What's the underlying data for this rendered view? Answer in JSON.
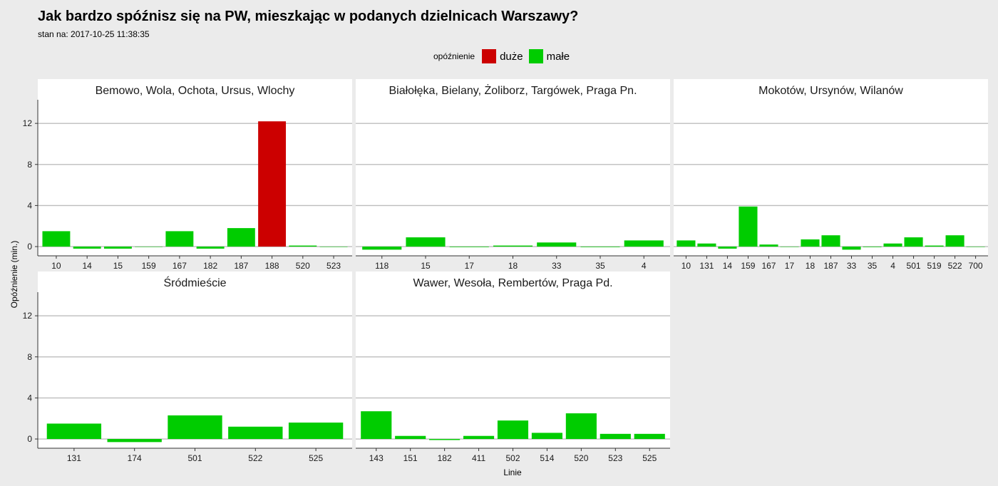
{
  "title": "Jak bardzo spóźnisz się na PW, mieszkając w podanych dzielnicach Warszawy?",
  "subtitle": "stan na: 2017-10-25 11:38:35",
  "legend": {
    "title": "opóźnienie",
    "items": [
      {
        "label": "duże",
        "color": "#cc0000"
      },
      {
        "label": "małe",
        "color": "#00cc00"
      }
    ]
  },
  "chart_data": {
    "type": "bar",
    "xlabel": "Linie",
    "ylabel": "Opóźnienie (min.)",
    "ylim": [
      -0.9,
      14.3
    ],
    "yticks": [
      0,
      4,
      8,
      12
    ],
    "grid": true,
    "legend_position": "top",
    "colors": {
      "duże": "#cc0000",
      "małe": "#00cc00"
    },
    "panels": [
      {
        "title": "Bemowo, Wola, Ochota, Ursus, Wlochy",
        "categories": [
          "10",
          "14",
          "15",
          "159",
          "167",
          "182",
          "187",
          "188",
          "520",
          "523"
        ],
        "values": [
          1.5,
          -0.2,
          -0.2,
          0.0,
          1.5,
          -0.2,
          1.8,
          12.2,
          0.1,
          0.0
        ],
        "level": [
          "małe",
          "małe",
          "małe",
          "małe",
          "małe",
          "małe",
          "małe",
          "duże",
          "małe",
          "małe"
        ]
      },
      {
        "title": "Białołęka, Bielany, Żoliborz, Targówek, Praga Pn.",
        "categories": [
          "118",
          "15",
          "17",
          "18",
          "33",
          "35",
          "4"
        ],
        "values": [
          -0.3,
          0.9,
          -0.05,
          0.1,
          0.4,
          -0.05,
          0.6
        ],
        "level": [
          "małe",
          "małe",
          "małe",
          "małe",
          "małe",
          "małe",
          "małe"
        ]
      },
      {
        "title": "Mokotów, Ursynów, Wilanów",
        "categories": [
          "10",
          "131",
          "14",
          "159",
          "167",
          "17",
          "18",
          "187",
          "33",
          "35",
          "4",
          "501",
          "519",
          "522",
          "700"
        ],
        "values": [
          0.6,
          0.3,
          -0.2,
          3.9,
          0.2,
          0.0,
          0.7,
          1.1,
          -0.3,
          -0.05,
          0.3,
          0.9,
          0.1,
          1.1,
          0.0
        ],
        "level": [
          "małe",
          "małe",
          "małe",
          "małe",
          "małe",
          "małe",
          "małe",
          "małe",
          "małe",
          "małe",
          "małe",
          "małe",
          "małe",
          "małe",
          "małe"
        ]
      },
      {
        "title": "Śródmieście",
        "categories": [
          "131",
          "174",
          "501",
          "522",
          "525"
        ],
        "values": [
          1.5,
          -0.3,
          2.3,
          1.2,
          1.6
        ],
        "level": [
          "małe",
          "małe",
          "małe",
          "małe",
          "małe"
        ]
      },
      {
        "title": "Wawer, Wesoła, Rembertów, Praga Pd.",
        "categories": [
          "143",
          "151",
          "182",
          "411",
          "502",
          "514",
          "520",
          "523",
          "525"
        ],
        "values": [
          2.7,
          0.3,
          -0.1,
          0.3,
          1.8,
          0.6,
          2.5,
          0.5,
          0.5
        ],
        "level": [
          "małe",
          "małe",
          "małe",
          "małe",
          "małe",
          "małe",
          "małe",
          "małe",
          "małe"
        ]
      }
    ]
  }
}
